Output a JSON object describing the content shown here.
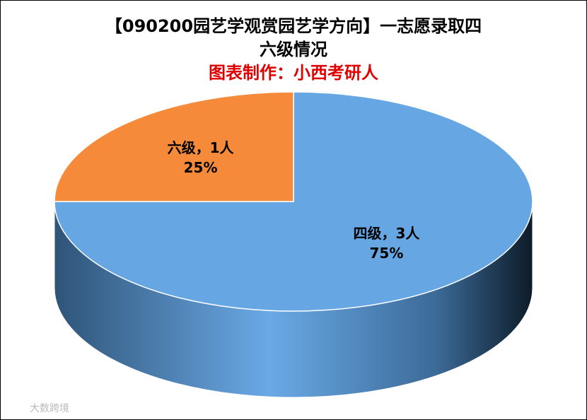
{
  "chart_data": {
    "type": "pie3d",
    "title_lines": [
      "【090200园艺学观赏园艺学方向】一志愿录取四",
      "六级情况"
    ],
    "subtitle": "图表制作：小西考研人",
    "labels": [
      "四级，3人",
      "六级，1人"
    ],
    "values": [
      75,
      25
    ],
    "value_labels": [
      "75%",
      "25%"
    ],
    "colors": [
      "#65a6e3",
      "#f58a3b"
    ],
    "watermark": "大数跨境"
  }
}
